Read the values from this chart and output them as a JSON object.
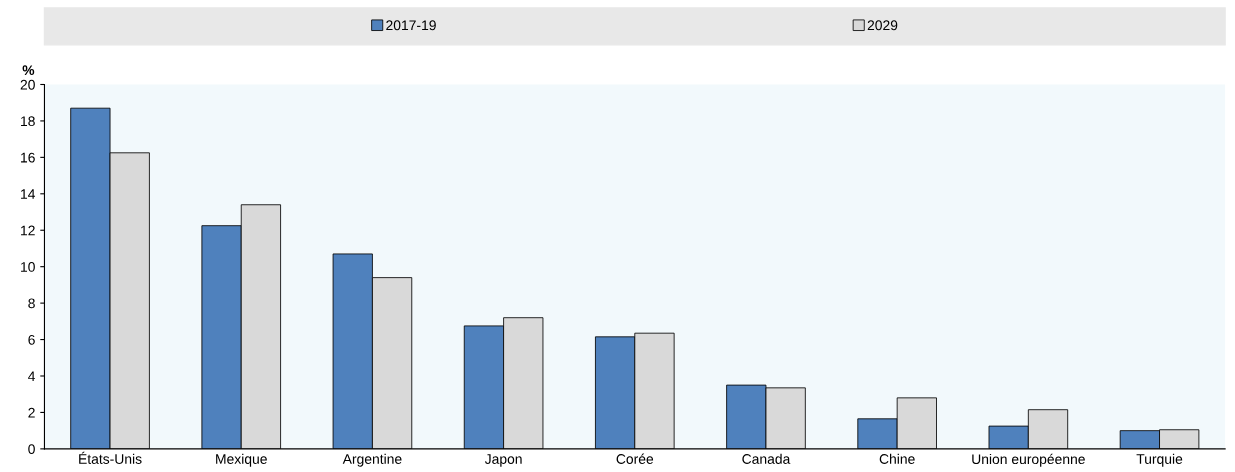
{
  "chart_data": {
    "type": "bar",
    "ylabel": "%",
    "categories": [
      "États-Unis",
      "Mexique",
      "Argentine",
      "Japon",
      "Corée",
      "Canada",
      "Chine",
      "Union européenne",
      "Turquie"
    ],
    "series": [
      {
        "name": "2017-19",
        "color": "#4f81bd",
        "values": [
          18.7,
          12.25,
          10.7,
          6.75,
          6.15,
          3.5,
          1.65,
          1.25,
          1.0
        ]
      },
      {
        "name": "2029",
        "color": "#d9d9d9",
        "values": [
          16.25,
          13.4,
          9.4,
          7.2,
          6.35,
          3.35,
          2.8,
          2.15,
          1.05
        ]
      }
    ],
    "ylim": [
      0,
      20
    ],
    "yticks": [
      0,
      2,
      4,
      6,
      8,
      10,
      12,
      14,
      16,
      18,
      20
    ],
    "grid": false,
    "legend": "top"
  }
}
